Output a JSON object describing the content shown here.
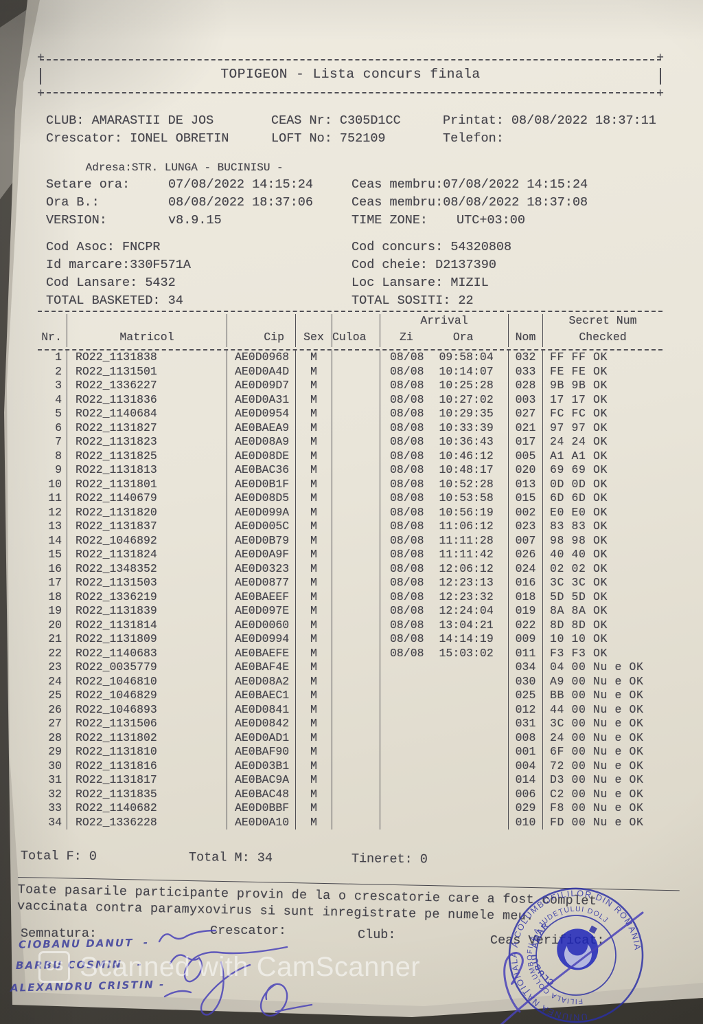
{
  "header": {
    "title": "TOPIGEON  -  Lista concurs finala"
  },
  "club_info": {
    "club": "CLUB: AMARASTII DE JOS",
    "ceas_nr": "CEAS Nr: C305D1CC",
    "printat": "Printat: 08/08/2022 18:37:11",
    "crescator": "Crescator: IONEL OBRETIN",
    "loft_no": "LOFT No: 752109",
    "telefon": "Telefon:",
    "adresa": "Adresa:STR. LUNGA - BUCINISU -"
  },
  "settings": {
    "setare_label": "Setare ora:",
    "setare_value": "07/08/2022 14:15:24",
    "ceas_membru_1": "Ceas membru:07/08/2022 14:15:24",
    "ora_b_label": "Ora B.:",
    "ora_b_value": "08/08/2022 18:37:06",
    "ceas_membru_2": "Ceas membru:08/08/2022 18:37:08",
    "version_label": "VERSION:",
    "version_value": "v8.9.15",
    "timezone_label": "TIME ZONE:",
    "timezone_value": "UTC+03:00"
  },
  "codes": {
    "cod_asoc": "Cod Asoc: FNCPR",
    "id_marcare": "Id marcare:330F571A",
    "cod_lansare": "Cod Lansare: 5432",
    "total_basketed": "TOTAL BASKETED: 34",
    "cod_concurs": "Cod concurs: 54320808",
    "cod_cheie": "Cod cheie: D2137390",
    "loc_lansare": "Loc Lansare: MIZIL",
    "total_sositi": "TOTAL SOSITI: 22"
  },
  "table": {
    "headers": {
      "nr": "Nr.",
      "matricol": "Matricol",
      "cip": "Cip",
      "sex": "Sex",
      "culoa": "Culoa",
      "arrival": "Arrival",
      "zi": "Zi",
      "ora": "Ora",
      "nom": "Nom",
      "secret_line1": "Secret Num",
      "secret_line2": "Checked"
    },
    "rows": [
      {
        "nr": "1",
        "matricol": "RO22_1131838",
        "cip": "AE0D0968",
        "sex": "M",
        "culoa": "",
        "zi": "08/08",
        "ora": "09:58:04",
        "nom": "032",
        "secret": "FF FF OK"
      },
      {
        "nr": "2",
        "matricol": "RO22_1131501",
        "cip": "AE0D0A4D",
        "sex": "M",
        "culoa": "",
        "zi": "08/08",
        "ora": "10:14:07",
        "nom": "033",
        "secret": "FE FE OK"
      },
      {
        "nr": "3",
        "matricol": "RO22_1336227",
        "cip": "AE0D09D7",
        "sex": "M",
        "culoa": "",
        "zi": "08/08",
        "ora": "10:25:28",
        "nom": "028",
        "secret": "9B 9B OK"
      },
      {
        "nr": "4",
        "matricol": "RO22_1131836",
        "cip": "AE0D0A31",
        "sex": "M",
        "culoa": "",
        "zi": "08/08",
        "ora": "10:27:02",
        "nom": "003",
        "secret": "17 17 OK"
      },
      {
        "nr": "5",
        "matricol": "RO22_1140684",
        "cip": "AE0D0954",
        "sex": "M",
        "culoa": "",
        "zi": "08/08",
        "ora": "10:29:35",
        "nom": "027",
        "secret": "FC FC OK"
      },
      {
        "nr": "6",
        "matricol": "RO22_1131827",
        "cip": "AE0BAEA9",
        "sex": "M",
        "culoa": "",
        "zi": "08/08",
        "ora": "10:33:39",
        "nom": "021",
        "secret": "97 97 OK"
      },
      {
        "nr": "7",
        "matricol": "RO22_1131823",
        "cip": "AE0D08A9",
        "sex": "M",
        "culoa": "",
        "zi": "08/08",
        "ora": "10:36:43",
        "nom": "017",
        "secret": "24 24 OK"
      },
      {
        "nr": "8",
        "matricol": "RO22_1131825",
        "cip": "AE0D08DE",
        "sex": "M",
        "culoa": "",
        "zi": "08/08",
        "ora": "10:46:12",
        "nom": "005",
        "secret": "A1 A1 OK"
      },
      {
        "nr": "9",
        "matricol": "RO22_1131813",
        "cip": "AE0BAC36",
        "sex": "M",
        "culoa": "",
        "zi": "08/08",
        "ora": "10:48:17",
        "nom": "020",
        "secret": "69 69 OK"
      },
      {
        "nr": "10",
        "matricol": "RO22_1131801",
        "cip": "AE0D0B1F",
        "sex": "M",
        "culoa": "",
        "zi": "08/08",
        "ora": "10:52:28",
        "nom": "013",
        "secret": "0D 0D OK"
      },
      {
        "nr": "11",
        "matricol": "RO22_1140679",
        "cip": "AE0D08D5",
        "sex": "M",
        "culoa": "",
        "zi": "08/08",
        "ora": "10:53:58",
        "nom": "015",
        "secret": "6D 6D OK"
      },
      {
        "nr": "12",
        "matricol": "RO22_1131820",
        "cip": "AE0D099A",
        "sex": "M",
        "culoa": "",
        "zi": "08/08",
        "ora": "10:56:19",
        "nom": "002",
        "secret": "E0 E0 OK"
      },
      {
        "nr": "13",
        "matricol": "RO22_1131837",
        "cip": "AE0D005C",
        "sex": "M",
        "culoa": "",
        "zi": "08/08",
        "ora": "11:06:12",
        "nom": "023",
        "secret": "83 83 OK"
      },
      {
        "nr": "14",
        "matricol": "RO22_1046892",
        "cip": "AE0D0B79",
        "sex": "M",
        "culoa": "",
        "zi": "08/08",
        "ora": "11:11:28",
        "nom": "007",
        "secret": "98 98 OK"
      },
      {
        "nr": "15",
        "matricol": "RO22_1131824",
        "cip": "AE0D0A9F",
        "sex": "M",
        "culoa": "",
        "zi": "08/08",
        "ora": "11:11:42",
        "nom": "026",
        "secret": "40 40 OK"
      },
      {
        "nr": "16",
        "matricol": "RO22_1348352",
        "cip": "AE0D0323",
        "sex": "M",
        "culoa": "",
        "zi": "08/08",
        "ora": "12:06:12",
        "nom": "024",
        "secret": "02 02 OK"
      },
      {
        "nr": "17",
        "matricol": "RO22_1131503",
        "cip": "AE0D0877",
        "sex": "M",
        "culoa": "",
        "zi": "08/08",
        "ora": "12:23:13",
        "nom": "016",
        "secret": "3C 3C OK"
      },
      {
        "nr": "18",
        "matricol": "RO22_1336219",
        "cip": "AE0BAEEF",
        "sex": "M",
        "culoa": "",
        "zi": "08/08",
        "ora": "12:23:32",
        "nom": "018",
        "secret": "5D 5D OK"
      },
      {
        "nr": "19",
        "matricol": "RO22_1131839",
        "cip": "AE0D097E",
        "sex": "M",
        "culoa": "",
        "zi": "08/08",
        "ora": "12:24:04",
        "nom": "019",
        "secret": "8A 8A OK"
      },
      {
        "nr": "20",
        "matricol": "RO22_1131814",
        "cip": "AE0D0060",
        "sex": "M",
        "culoa": "",
        "zi": "08/08",
        "ora": "13:04:21",
        "nom": "022",
        "secret": "8D 8D OK"
      },
      {
        "nr": "21",
        "matricol": "RO22_1131809",
        "cip": "AE0D0994",
        "sex": "M",
        "culoa": "",
        "zi": "08/08",
        "ora": "14:14:19",
        "nom": "009",
        "secret": "10 10 OK"
      },
      {
        "nr": "22",
        "matricol": "RO22_1140683",
        "cip": "AE0BAEFE",
        "sex": "M",
        "culoa": "",
        "zi": "08/08",
        "ora": "15:03:02",
        "nom": "011",
        "secret": "F3 F3 OK"
      },
      {
        "nr": "23",
        "matricol": "RO22_0035779",
        "cip": "AE0BAF4E",
        "sex": "M",
        "culoa": "",
        "zi": "",
        "ora": "",
        "nom": "034",
        "secret": "04 00 Nu e OK"
      },
      {
        "nr": "24",
        "matricol": "RO22_1046810",
        "cip": "AE0D08A2",
        "sex": "M",
        "culoa": "",
        "zi": "",
        "ora": "",
        "nom": "030",
        "secret": "A9 00 Nu e OK"
      },
      {
        "nr": "25",
        "matricol": "RO22_1046829",
        "cip": "AE0BAEC1",
        "sex": "M",
        "culoa": "",
        "zi": "",
        "ora": "",
        "nom": "025",
        "secret": "BB 00 Nu e OK"
      },
      {
        "nr": "26",
        "matricol": "RO22_1046893",
        "cip": "AE0D0841",
        "sex": "M",
        "culoa": "",
        "zi": "",
        "ora": "",
        "nom": "012",
        "secret": "44 00 Nu e OK"
      },
      {
        "nr": "27",
        "matricol": "RO22_1131506",
        "cip": "AE0D0842",
        "sex": "M",
        "culoa": "",
        "zi": "",
        "ora": "",
        "nom": "031",
        "secret": "3C 00 Nu e OK"
      },
      {
        "nr": "28",
        "matricol": "RO22_1131802",
        "cip": "AE0D0AD1",
        "sex": "M",
        "culoa": "",
        "zi": "",
        "ora": "",
        "nom": "008",
        "secret": "24 00 Nu e OK"
      },
      {
        "nr": "29",
        "matricol": "RO22_1131810",
        "cip": "AE0BAF90",
        "sex": "M",
        "culoa": "",
        "zi": "",
        "ora": "",
        "nom": "001",
        "secret": "6F 00 Nu e OK"
      },
      {
        "nr": "30",
        "matricol": "RO22_1131816",
        "cip": "AE0D03B1",
        "sex": "M",
        "culoa": "",
        "zi": "",
        "ora": "",
        "nom": "004",
        "secret": "72 00 Nu e OK"
      },
      {
        "nr": "31",
        "matricol": "RO22_1131817",
        "cip": "AE0BAC9A",
        "sex": "M",
        "culoa": "",
        "zi": "",
        "ora": "",
        "nom": "014",
        "secret": "D3 00 Nu e OK"
      },
      {
        "nr": "32",
        "matricol": "RO22_1131835",
        "cip": "AE0BAC48",
        "sex": "M",
        "culoa": "",
        "zi": "",
        "ora": "",
        "nom": "006",
        "secret": "C2 00 Nu e OK"
      },
      {
        "nr": "33",
        "matricol": "RO22_1140682",
        "cip": "AE0D0BBF",
        "sex": "M",
        "culoa": "",
        "zi": "",
        "ora": "",
        "nom": "029",
        "secret": "F8 00 Nu e OK"
      },
      {
        "nr": "34",
        "matricol": "RO22_1336228",
        "cip": "AE0D0A10",
        "sex": "M",
        "culoa": "",
        "zi": "",
        "ora": "",
        "nom": "010",
        "secret": "FD 00 Nu e OK"
      }
    ]
  },
  "totals": {
    "f": "Total F: 0",
    "m": "Total M: 34",
    "tineret": "Tineret: 0"
  },
  "note": {
    "line1": "Toate pasarile participante provin de la o crescatorie care a fost complet",
    "line2": "vaccinata contra paramyxovirus si sunt inregistrate pe numele meu."
  },
  "signature_section": {
    "semnatura_label": "Semnatura:",
    "crescator_label": "Crescator:",
    "club_label": "Club:",
    "ceas_verificat_label": "Ceas Verificat:",
    "handwritten_1": "CIOBANU DANUT  -",
    "handwritten_2": "BARBU COSMIN   -",
    "handwritten_3": "ALEXANDRU CRISTIN -"
  },
  "stamp": {
    "ring_outer": "UNIUNEA NAŢIONALĂ A COLUMBOFILILOR DIN ROMÂNIA",
    "ring_inner": "FILIALA COLUMBOFILA A JUDEŢULUI DOLJ",
    "center": "CLUBUL AMARASTII DE JOS",
    "color": "#2b2fa5"
  },
  "watermark": {
    "logo": "CS",
    "text": "Scanned with CamScanner"
  }
}
